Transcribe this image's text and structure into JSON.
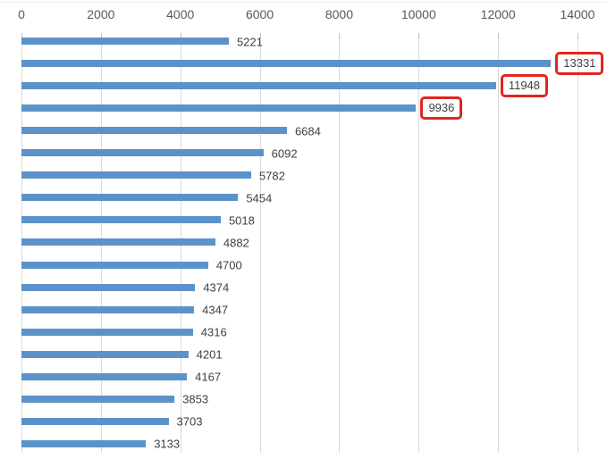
{
  "chart_data": {
    "type": "bar",
    "orientation": "horizontal",
    "title": "",
    "xlabel": "",
    "ylabel": "",
    "x_axis": {
      "position": "top",
      "min": 0,
      "max": 14000,
      "tick_interval": 2000,
      "tick_labels": [
        "0",
        "2000",
        "4000",
        "6000",
        "8000",
        "10000",
        "12000",
        "14000"
      ]
    },
    "grid": true,
    "legend_position": "none",
    "colors": {
      "bar": "#5b93c9",
      "gridline": "#dadada",
      "tick": "#bfbfbf",
      "axis_label": "#595959",
      "value_label": "#3f3f3f",
      "highlight_border": "#e2251d"
    },
    "bars": [
      {
        "value": 5221,
        "label": "5221",
        "highlighted": false
      },
      {
        "value": 13331,
        "label": "13331",
        "highlighted": true
      },
      {
        "value": 11948,
        "label": "11948",
        "highlighted": true
      },
      {
        "value": 9936,
        "label": "9936",
        "highlighted": true
      },
      {
        "value": 6684,
        "label": "6684",
        "highlighted": false
      },
      {
        "value": 6092,
        "label": "6092",
        "highlighted": false
      },
      {
        "value": 5782,
        "label": "5782",
        "highlighted": false
      },
      {
        "value": 5454,
        "label": "5454",
        "highlighted": false
      },
      {
        "value": 5018,
        "label": "5018",
        "highlighted": false
      },
      {
        "value": 4882,
        "label": "4882",
        "highlighted": false
      },
      {
        "value": 4700,
        "label": "4700",
        "highlighted": false
      },
      {
        "value": 4374,
        "label": "4374",
        "highlighted": false
      },
      {
        "value": 4347,
        "label": "4347",
        "highlighted": false
      },
      {
        "value": 4316,
        "label": "4316",
        "highlighted": false
      },
      {
        "value": 4201,
        "label": "4201",
        "highlighted": false
      },
      {
        "value": 4167,
        "label": "4167",
        "highlighted": false
      },
      {
        "value": 3853,
        "label": "3853",
        "highlighted": false
      },
      {
        "value": 3703,
        "label": "3703",
        "highlighted": false
      },
      {
        "value": 3133,
        "label": "3133",
        "highlighted": false
      }
    ]
  }
}
